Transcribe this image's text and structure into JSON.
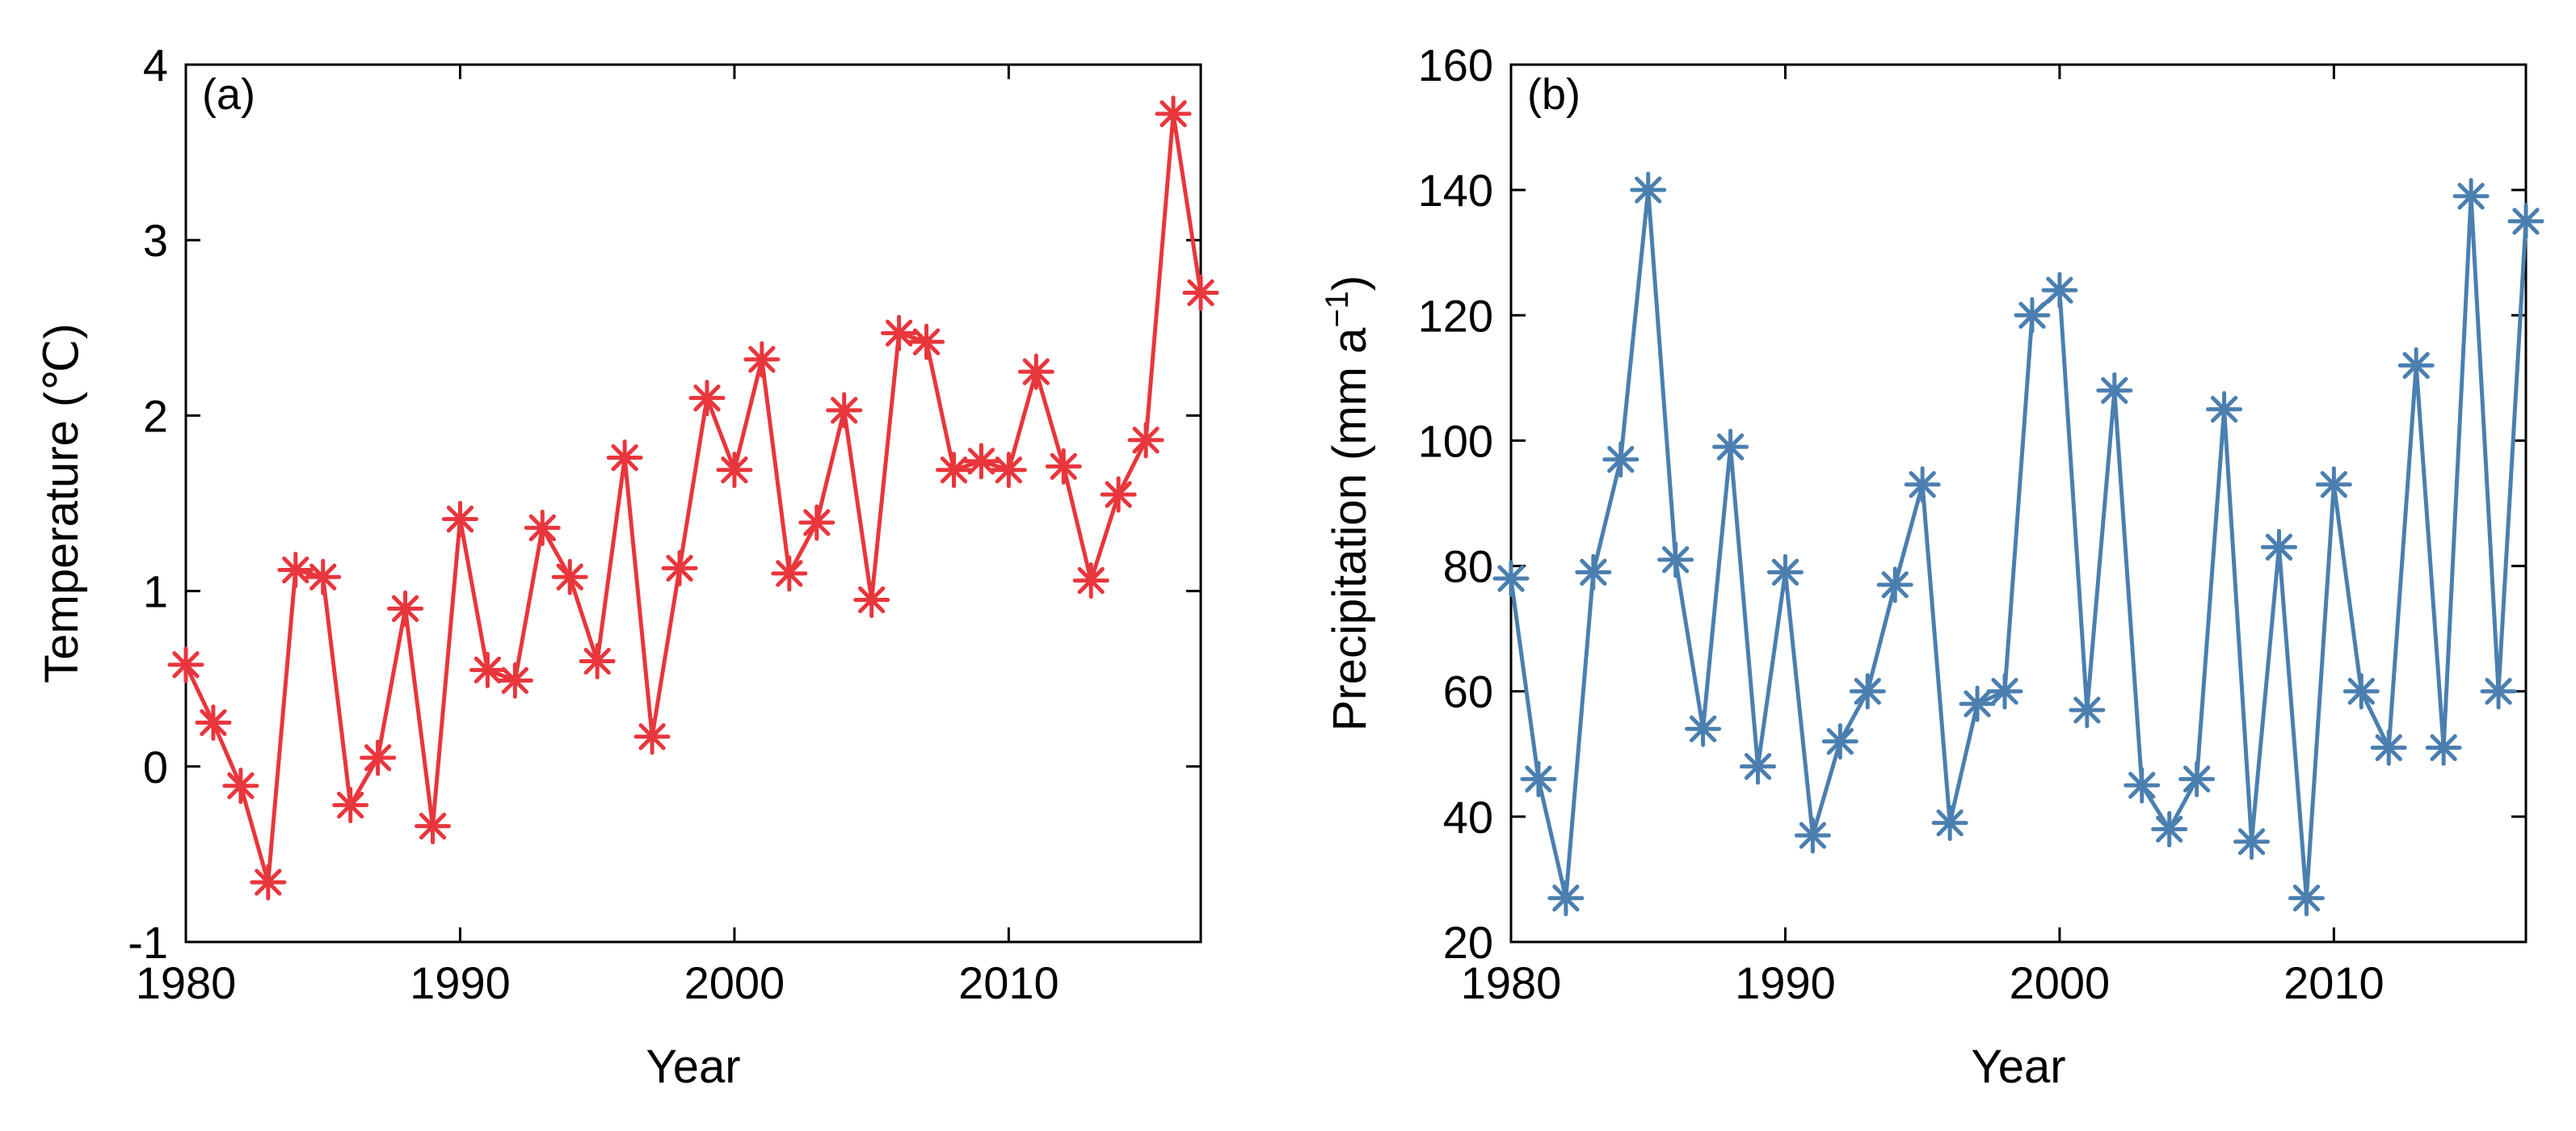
{
  "chart_data": [
    {
      "type": "line",
      "panel_label": "(a)",
      "title": "",
      "xlabel": "Year",
      "ylabel": "Temperature (℃)",
      "xlim": [
        1980,
        2017
      ],
      "ylim": [
        -1,
        4
      ],
      "xticks": [
        1980,
        1990,
        2000,
        2010
      ],
      "xtick_labels": [
        "1980",
        "1990",
        "2000",
        "2010"
      ],
      "yticks": [
        -1,
        0,
        1,
        2,
        3,
        4
      ],
      "ytick_labels": [
        "-1",
        "0",
        "1",
        "2",
        "3",
        "4"
      ],
      "grid": false,
      "color": "#e8363c",
      "marker": "asterisk",
      "series": [
        {
          "name": "Temperature",
          "x": [
            1980,
            1981,
            1982,
            1983,
            1984,
            1985,
            1986,
            1987,
            1988,
            1989,
            1990,
            1991,
            1992,
            1993,
            1994,
            1995,
            1996,
            1997,
            1998,
            1999,
            2000,
            2001,
            2002,
            2003,
            2004,
            2005,
            2006,
            2007,
            2008,
            2009,
            2010,
            2011,
            2012,
            2013,
            2014,
            2015,
            2016,
            2017
          ],
          "values": [
            0.58,
            0.25,
            -0.11,
            -0.66,
            1.12,
            1.08,
            -0.22,
            0.05,
            0.9,
            -0.34,
            1.41,
            0.55,
            0.49,
            1.36,
            1.08,
            0.6,
            1.76,
            0.17,
            1.13,
            2.1,
            1.69,
            2.32,
            1.1,
            1.39,
            2.03,
            0.95,
            2.47,
            2.42,
            1.69,
            1.74,
            1.69,
            2.25,
            1.71,
            1.06,
            1.55,
            1.86,
            3.72,
            2.7
          ]
        }
      ]
    },
    {
      "type": "line",
      "panel_label": "(b)",
      "title": "",
      "xlabel": "Year",
      "ylabel": "Precipitation (mm a",
      "ylabel_superscript": "−1",
      "ylabel_close": ")",
      "xlim": [
        1980,
        2017
      ],
      "ylim": [
        20,
        160
      ],
      "xticks": [
        1980,
        1990,
        2000,
        2010
      ],
      "xtick_labels": [
        "1980",
        "1990",
        "2000",
        "2010"
      ],
      "yticks": [
        20,
        40,
        60,
        80,
        100,
        120,
        140,
        160
      ],
      "ytick_labels": [
        "20",
        "40",
        "60",
        "80",
        "100",
        "120",
        "140",
        "160"
      ],
      "grid": false,
      "color": "#4a7fb0",
      "marker": "asterisk",
      "series": [
        {
          "name": "Precipitation",
          "x": [
            1980,
            1981,
            1982,
            1983,
            1984,
            1985,
            1986,
            1987,
            1988,
            1989,
            1990,
            1991,
            1992,
            1993,
            1994,
            1995,
            1996,
            1997,
            1998,
            1999,
            2000,
            2001,
            2002,
            2003,
            2004,
            2005,
            2006,
            2007,
            2008,
            2009,
            2010,
            2011,
            2012,
            2013,
            2014,
            2015,
            2016,
            2017
          ],
          "values": [
            78,
            46,
            27,
            79,
            97,
            140,
            81,
            54,
            99,
            48,
            79,
            37,
            52,
            60,
            77,
            93,
            39,
            58,
            60,
            120,
            124,
            57,
            108,
            45,
            38,
            46,
            105,
            36,
            83,
            27,
            93,
            60,
            51,
            112,
            51,
            139,
            60,
            135
          ]
        }
      ]
    }
  ]
}
